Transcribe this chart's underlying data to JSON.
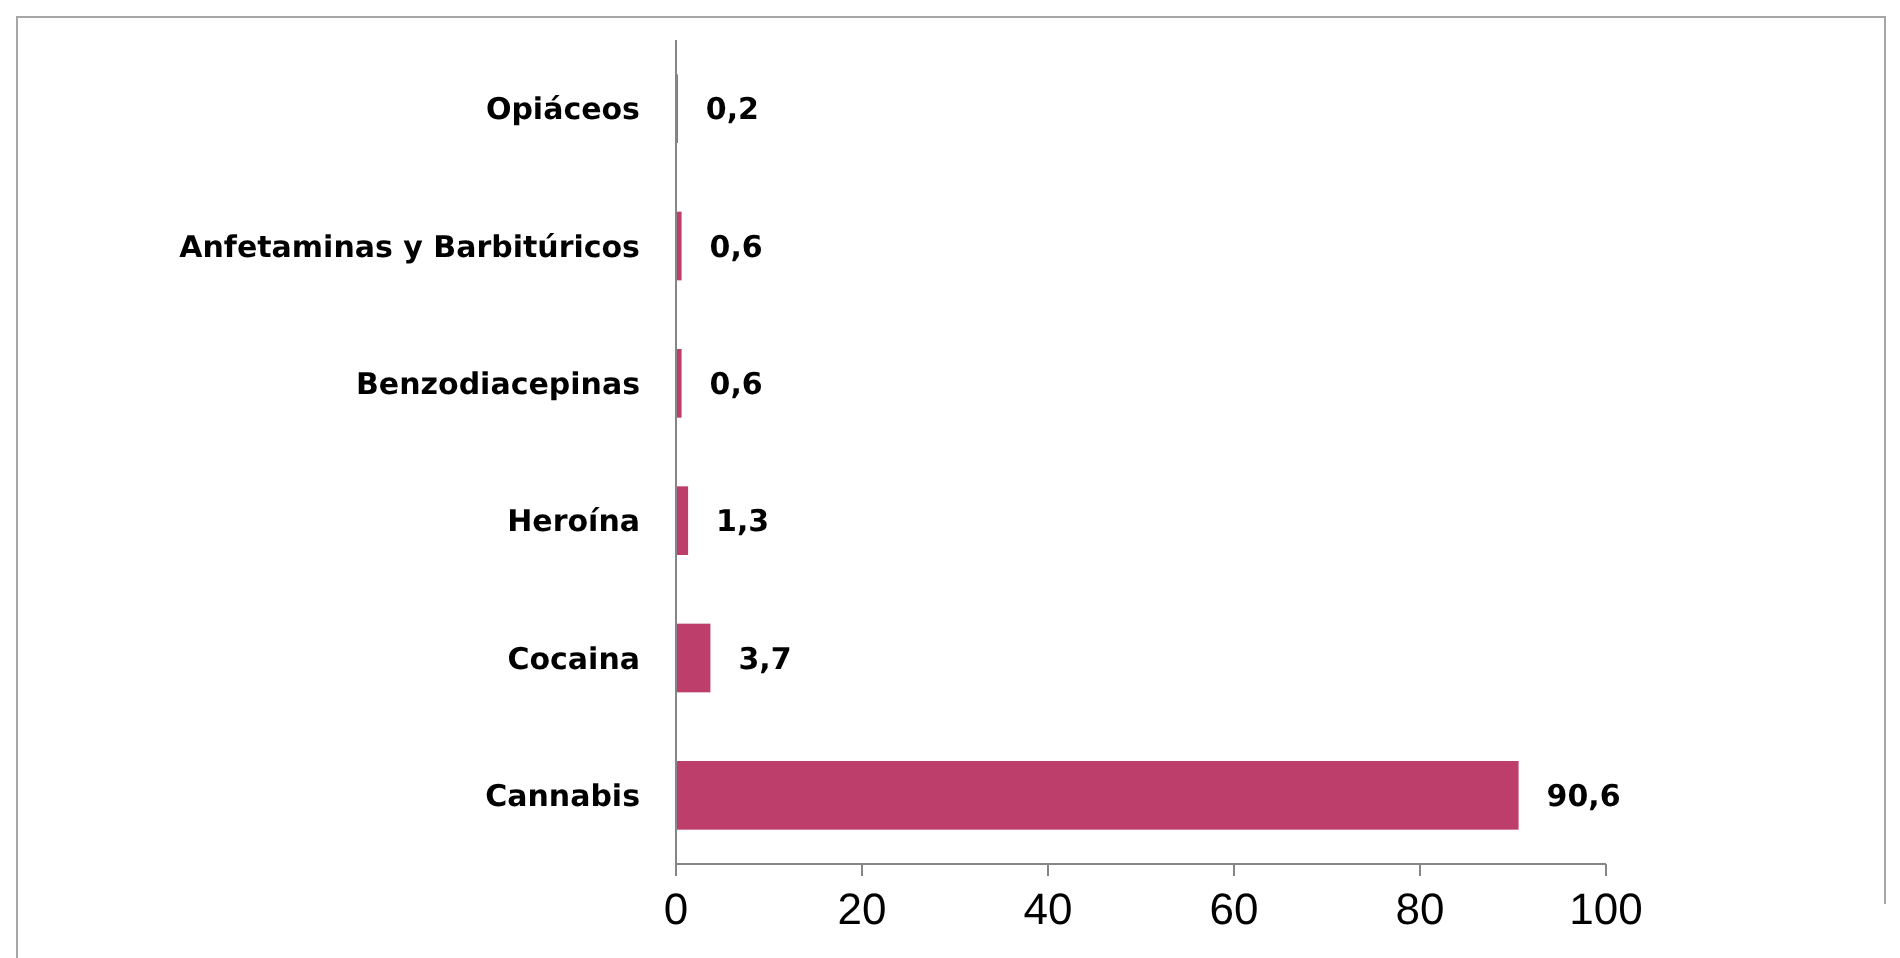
{
  "chart_data": {
    "type": "bar",
    "orientation": "horizontal",
    "categories": [
      "Opiáceos",
      "Anfetaminas y Barbitúricos",
      "Benzodiacepinas",
      "Heroína",
      "Cocaina",
      "Cannabis"
    ],
    "values": [
      0.2,
      0.6,
      0.6,
      1.3,
      3.7,
      90.6
    ],
    "value_labels": [
      "0,2",
      "0,6",
      "0,6",
      "1,3",
      "3,7",
      "90,6"
    ],
    "color": "#be3e6b",
    "xlim": [
      0,
      100
    ],
    "xticks": [
      0,
      20,
      40,
      60,
      80,
      100
    ],
    "grid": false
  }
}
